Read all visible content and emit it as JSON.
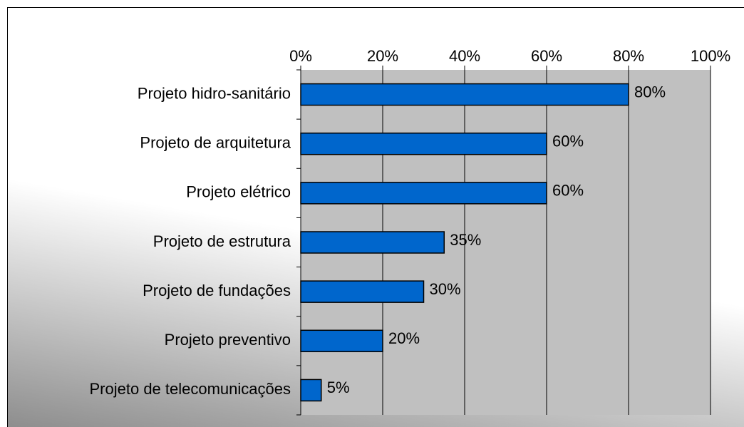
{
  "chart_data": {
    "type": "bar",
    "orientation": "horizontal",
    "categories": [
      "Projeto hidro-sanitário",
      "Projeto de arquitetura",
      "Projeto elétrico",
      "Projeto de estrutura",
      "Projeto de fundações",
      "Projeto preventivo",
      "Projeto de telecomunicações"
    ],
    "values": [
      80,
      60,
      60,
      35,
      30,
      20,
      5
    ],
    "value_labels": [
      "80%",
      "60%",
      "60%",
      "35%",
      "30%",
      "20%",
      "5%"
    ],
    "color": "#0066cc",
    "xlim": [
      0,
      100
    ],
    "xticks": [
      {
        "value": 0,
        "label": "0%"
      },
      {
        "value": 20,
        "label": "20%"
      },
      {
        "value": 40,
        "label": "40%"
      },
      {
        "value": 60,
        "label": "60%"
      },
      {
        "value": 80,
        "label": "80%"
      },
      {
        "value": 100,
        "label": "100%"
      }
    ],
    "grid": true
  }
}
